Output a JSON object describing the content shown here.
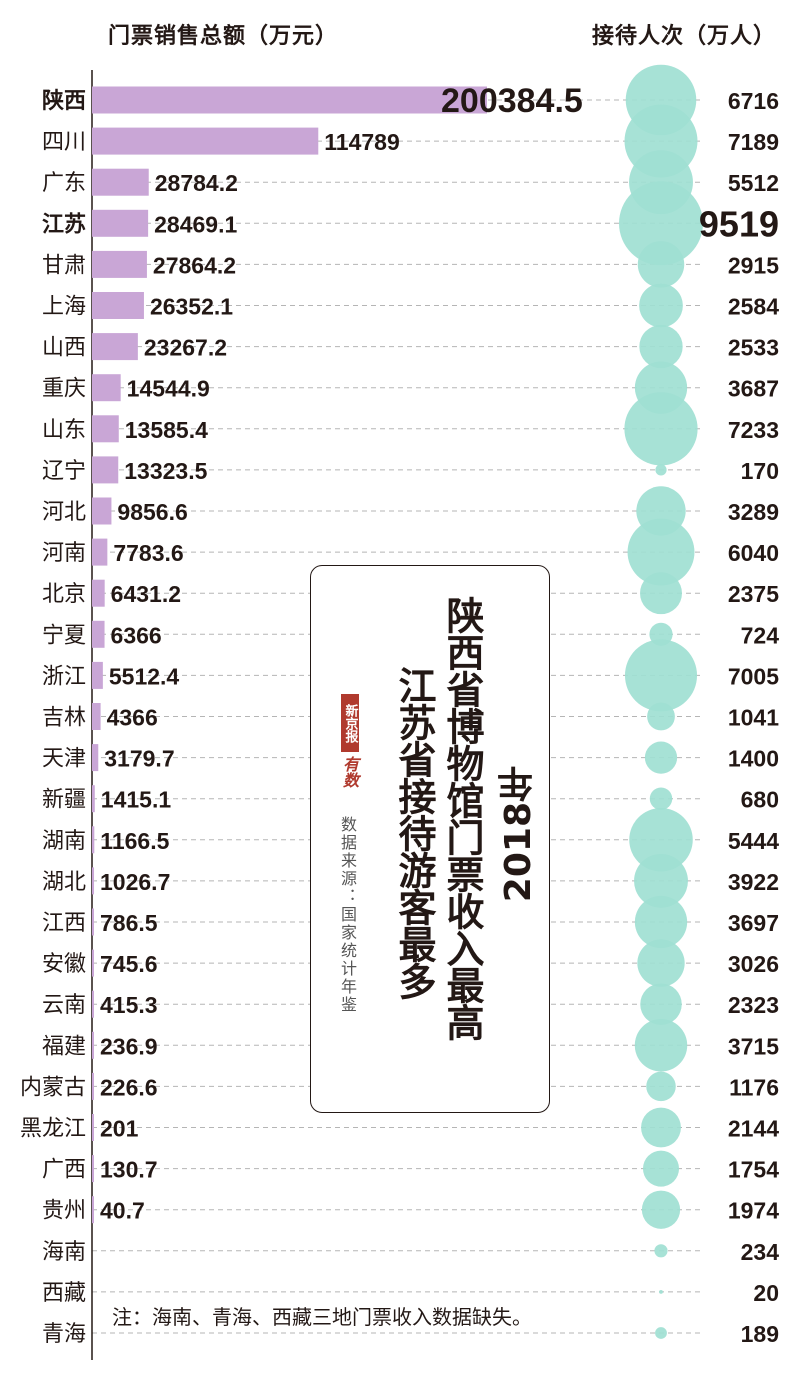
{
  "headers": {
    "left": "门票销售总额（万元）",
    "right": "接待人次（万人）"
  },
  "title": {
    "year": "2018年",
    "line1": "陕西省博物馆门票收入最高",
    "line2": "江苏省接待游客最多"
  },
  "source": "数据来源：国家统计年鉴",
  "logo": {
    "name": "新京报",
    "mark": "有数"
  },
  "note": "注：海南、青海、西藏三地门票收入数据缺失。",
  "colors": {
    "bar": "#c9a6d6",
    "bubble": "#9fe0d2",
    "gridline": "#b5b5b5",
    "text": "#231815"
  },
  "chart_data": {
    "type": "bar",
    "categories": [
      "陕西",
      "四川",
      "广东",
      "江苏",
      "甘肃",
      "上海",
      "山西",
      "重庆",
      "山东",
      "辽宁",
      "河北",
      "河南",
      "北京",
      "宁夏",
      "浙江",
      "吉林",
      "天津",
      "新疆",
      "湖南",
      "湖北",
      "江西",
      "安徽",
      "云南",
      "福建",
      "内蒙古",
      "黑龙江",
      "广西",
      "贵州",
      "海南",
      "西藏",
      "青海"
    ],
    "bold_categories": [
      "陕西",
      "江苏"
    ],
    "series": [
      {
        "name": "门票销售总额（万元）",
        "type": "bar",
        "values": [
          200384.5,
          114789,
          28784.2,
          28469.1,
          27864.2,
          26352.1,
          23267.2,
          14544.9,
          13585.4,
          13323.5,
          9856.6,
          7783.6,
          6431.2,
          6366,
          5512.4,
          4366,
          3179.7,
          1415.1,
          1166.5,
          1026.7,
          786.5,
          745.6,
          415.3,
          236.9,
          226.6,
          201,
          130.7,
          40.7,
          null,
          null,
          null
        ],
        "labels": [
          "200384.5",
          "114789",
          "28784.2",
          "28469.1",
          "27864.2",
          "26352.1",
          "23267.2",
          "14544.9",
          "13585.4",
          "13323.5",
          "9856.6",
          "7783.6",
          "6431.2",
          "6366",
          "5512.4",
          "4366",
          "3179.7",
          "1415.1",
          "1166.5",
          "1026.7",
          "786.5",
          "745.6",
          "415.3",
          "236.9",
          "226.6",
          "201",
          "130.7",
          "40.7",
          "",
          "",
          ""
        ]
      },
      {
        "name": "接待人次（万人）",
        "type": "bubble",
        "values": [
          6716,
          7189,
          5512,
          9519,
          2915,
          2584,
          2533,
          3687,
          7233,
          170,
          3289,
          6040,
          2375,
          724,
          7005,
          1041,
          1400,
          680,
          5444,
          3922,
          3697,
          3026,
          2323,
          3715,
          1176,
          2144,
          1754,
          1974,
          234,
          20,
          189
        ],
        "labels": [
          "6716",
          "7189",
          "5512",
          "9519",
          "2915",
          "2584",
          "2533",
          "3687",
          "7233",
          "170",
          "3289",
          "6040",
          "2375",
          "724",
          "7005",
          "1041",
          "1400",
          "680",
          "5444",
          "3922",
          "3697",
          "3026",
          "2323",
          "3715",
          "1176",
          "2144",
          "1754",
          "1974",
          "234",
          "20",
          "189"
        ]
      }
    ],
    "xlim": [
      0,
      200384.5
    ],
    "grid": true,
    "legend": "top"
  }
}
